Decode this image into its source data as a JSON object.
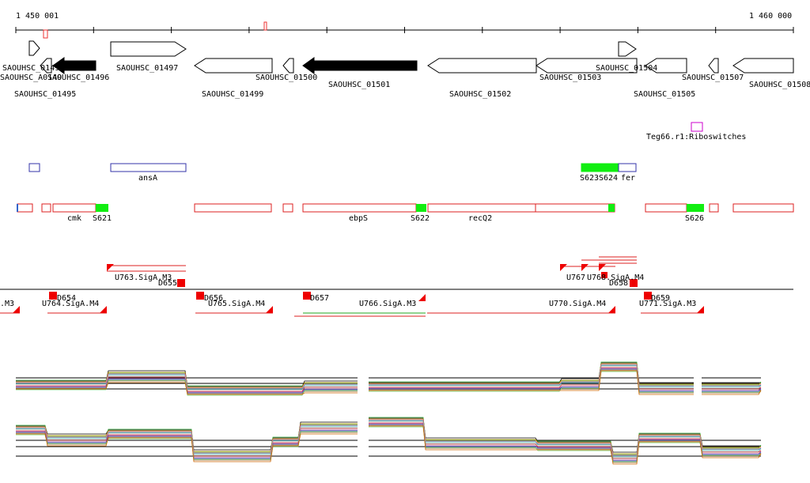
{
  "ruler": {
    "start": "1 450 001",
    "end": "1 460 000"
  },
  "genes": [
    "SAOUHSC_0149",
    "SAOUHSC_A0149",
    "SAOUHSC_01496",
    "SAOUHSC_01495",
    "SAOUHSC_01497",
    "SAOUHSC_01499",
    "SAOUHSC_01500",
    "SAOUHSC_01501",
    "SAOUHSC_01502",
    "SAOUHSC_01503",
    "SAOUHSC_01504",
    "SAOUHSC_01505",
    "SAOUHSC_01507",
    "SAOUHSC_01508"
  ],
  "riboswitch": "Teg66.r1:Riboswitches",
  "operons": [
    "ansA",
    "S623",
    "S624",
    "fer"
  ],
  "transcripts": [
    "cmk",
    "S621",
    "ebpS",
    "S622",
    "recQ2",
    "S626"
  ],
  "promoters": [
    ".M3",
    "U763.SigA.M3",
    "D655",
    "U767",
    "U768.SigA.M4",
    "D658",
    "D654",
    "U764.SigA.M4",
    "D656",
    "U765.SigA.M4",
    "D657",
    "U766.SigA.M3",
    "U770.SigA.M4",
    "D659",
    "U771.SigA.M3"
  ]
}
